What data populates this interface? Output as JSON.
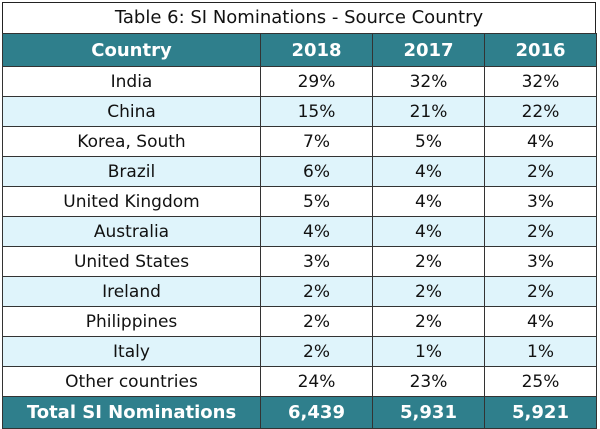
{
  "chart_data": {
    "type": "table",
    "title": "Table 6: SI Nominations - Source Country",
    "columns": [
      "Country",
      "2018",
      "2017",
      "2016"
    ],
    "rows": [
      [
        "India",
        "29%",
        "32%",
        "32%"
      ],
      [
        "China",
        "15%",
        "21%",
        "22%"
      ],
      [
        "Korea, South",
        "7%",
        "5%",
        "4%"
      ],
      [
        "Brazil",
        "6%",
        "4%",
        "2%"
      ],
      [
        "United Kingdom",
        "5%",
        "4%",
        "3%"
      ],
      [
        "Australia",
        "4%",
        "4%",
        "2%"
      ],
      [
        "United States",
        "3%",
        "2%",
        "3%"
      ],
      [
        "Ireland",
        "2%",
        "2%",
        "2%"
      ],
      [
        "Philippines",
        "2%",
        "2%",
        "4%"
      ],
      [
        "Italy",
        "2%",
        "1%",
        "1%"
      ],
      [
        "Other countries",
        "24%",
        "23%",
        "25%"
      ]
    ],
    "total": [
      "Total SI Nominations",
      "6,439",
      "5,931",
      "5,921"
    ]
  },
  "colors": {
    "header_bg": "#2f7f8c",
    "alt_row_bg": "#dff4fb"
  }
}
